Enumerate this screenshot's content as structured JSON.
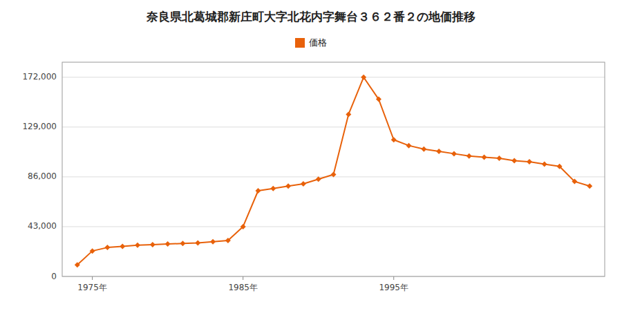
{
  "chart_data": {
    "type": "line",
    "title": "奈良県北葛城郡新庄町大字北花内字舞台３６２番２の地価推移",
    "x": [
      1974,
      1975,
      1976,
      1977,
      1978,
      1979,
      1980,
      1981,
      1982,
      1983,
      1984,
      1985,
      1986,
      1987,
      1988,
      1989,
      1990,
      1991,
      1992,
      1993,
      1994,
      1995,
      1996,
      1997,
      1998,
      1999,
      2000,
      2001,
      2002,
      2003,
      2004,
      2005,
      2006,
      2007,
      2008
    ],
    "series": [
      {
        "name": "価格",
        "color": "#e8610a",
        "marker": "diamond",
        "values": [
          10000,
          22000,
          25000,
          26000,
          27000,
          27500,
          28000,
          28500,
          29000,
          30000,
          31000,
          43000,
          74000,
          76000,
          78000,
          80000,
          84000,
          88000,
          140000,
          172000,
          153000,
          118000,
          113000,
          110000,
          108000,
          106000,
          104000,
          103000,
          102000,
          100000,
          99000,
          97000,
          95000,
          82000,
          78000
        ]
      }
    ],
    "xlim": [
      1973,
      2009
    ],
    "xticks": [
      {
        "value": 1975,
        "label": "1975年"
      },
      {
        "value": 1985,
        "label": "1985年"
      },
      {
        "value": 1995,
        "label": "1995年"
      }
    ],
    "ylim": [
      0,
      185000
    ],
    "yticks": [
      0,
      {
        "value": 43000,
        "label": "43,000"
      },
      {
        "value": 86000,
        "label": "86,000"
      },
      {
        "value": 129000,
        "label": "129,000"
      },
      {
        "value": 172000,
        "label": "172,000"
      }
    ],
    "grid": true,
    "legend": "upper center"
  }
}
